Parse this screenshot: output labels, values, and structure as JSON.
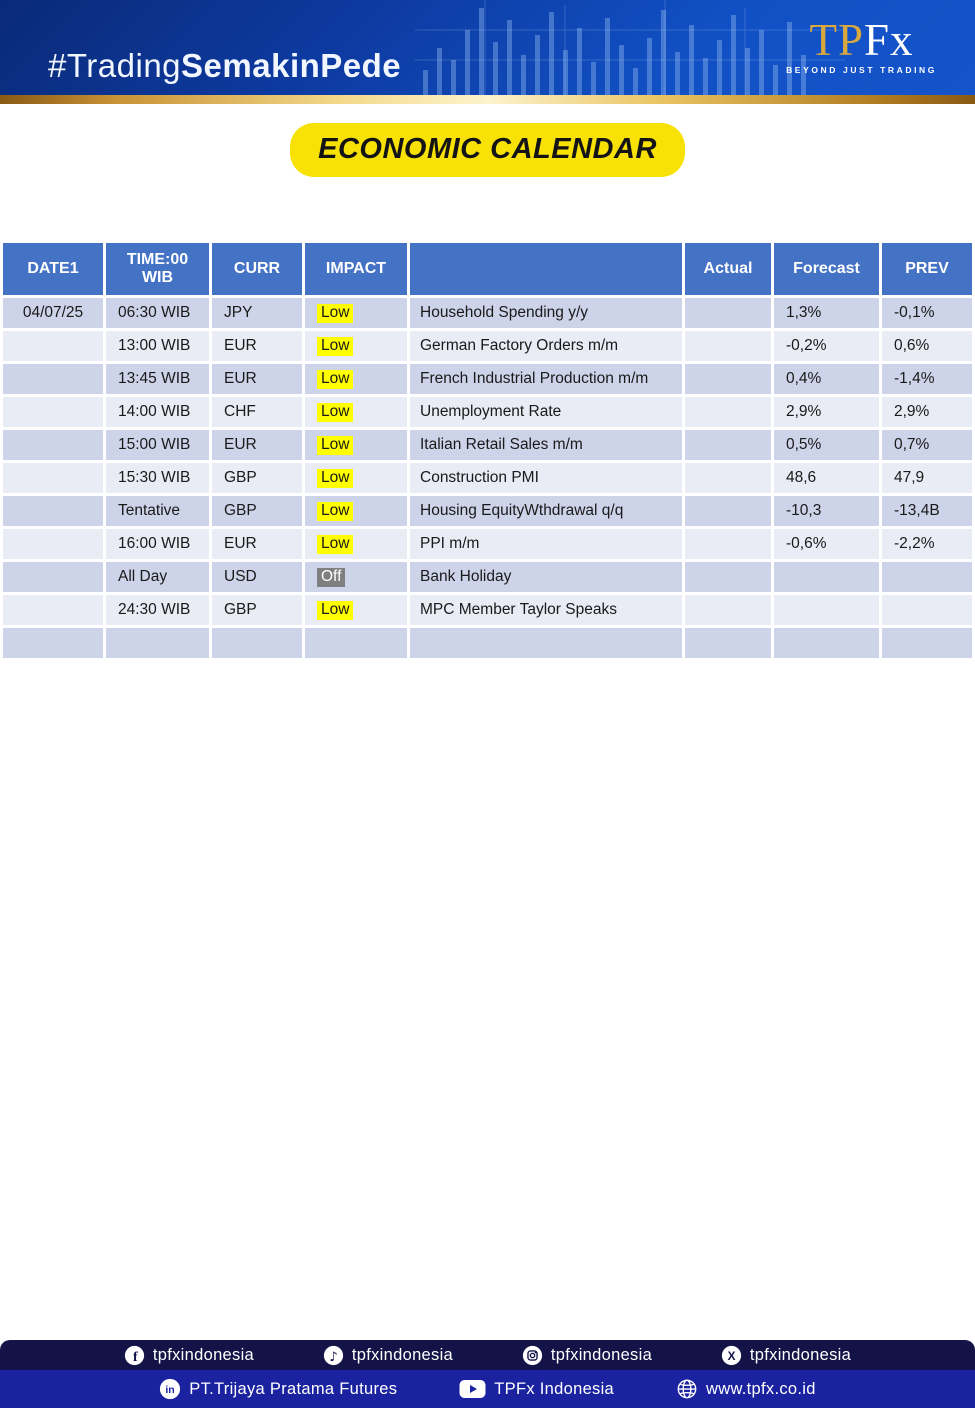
{
  "header": {
    "hashtag": {
      "regular": "#Trading",
      "bold": "SemakinPede"
    },
    "logo": {
      "tp": "TP",
      "fx": "Fx",
      "tagline": "BEYOND JUST TRADING"
    }
  },
  "title_badge": "ECONOMIC CALENDAR",
  "table": {
    "headers": {
      "date": "DATE1",
      "time": "TIME:00 WIB",
      "curr": "CURR",
      "impact": "IMPACT",
      "event": "",
      "actual": "Actual",
      "forecast": "Forecast",
      "prev": "PREV"
    },
    "rows": [
      {
        "date": "04/07/25",
        "time": "06:30 WIB",
        "curr": "JPY",
        "impact": "Low",
        "event": "Household Spending y/y",
        "actual": "",
        "forecast": "1,3%",
        "prev": "-0,1%"
      },
      {
        "date": "",
        "time": "13:00 WIB",
        "curr": "EUR",
        "impact": "Low",
        "event": "German Factory Orders m/m",
        "actual": "",
        "forecast": "-0,2%",
        "prev": "0,6%"
      },
      {
        "date": "",
        "time": "13:45 WIB",
        "curr": "EUR",
        "impact": "Low",
        "event": "French Industrial Production m/m",
        "actual": "",
        "forecast": "0,4%",
        "prev": "-1,4%"
      },
      {
        "date": "",
        "time": "14:00 WIB",
        "curr": "CHF",
        "impact": "Low",
        "event": "Unemployment Rate",
        "actual": "",
        "forecast": "2,9%",
        "prev": "2,9%"
      },
      {
        "date": "",
        "time": "15:00 WIB",
        "curr": "EUR",
        "impact": "Low",
        "event": "Italian Retail Sales m/m",
        "actual": "",
        "forecast": "0,5%",
        "prev": "0,7%"
      },
      {
        "date": "",
        "time": "15:30 WIB",
        "curr": "GBP",
        "impact": "Low",
        "event": "Construction PMI",
        "actual": "",
        "forecast": "48,6",
        "prev": "47,9"
      },
      {
        "date": "",
        "time": "Tentative",
        "curr": "GBP",
        "impact": "Low",
        "event": "Housing EquityWthdrawal q/q",
        "actual": "",
        "forecast": "-10,3",
        "prev": "-13,4B"
      },
      {
        "date": "",
        "time": "16:00 WIB",
        "curr": "EUR",
        "impact": "Low",
        "event": "PPI m/m",
        "actual": "",
        "forecast": "-0,6%",
        "prev": "-2,2%"
      },
      {
        "date": "",
        "time": "All Day",
        "curr": "USD",
        "impact": "Off",
        "event": "Bank Holiday",
        "actual": "",
        "forecast": "",
        "prev": ""
      },
      {
        "date": "",
        "time": "24:30 WIB",
        "curr": "GBP",
        "impact": "Low",
        "event": "MPC Member Taylor Speaks",
        "actual": "",
        "forecast": "",
        "prev": ""
      },
      {
        "date": "",
        "time": "",
        "curr": "",
        "impact": "",
        "event": "",
        "actual": "",
        "forecast": "",
        "prev": ""
      }
    ]
  },
  "footer": {
    "social_row": [
      {
        "icon": "facebook-icon",
        "label": "tpfxindonesia"
      },
      {
        "icon": "tiktok-icon",
        "label": "tpfxindonesia"
      },
      {
        "icon": "instagram-icon",
        "label": "tpfxindonesia"
      },
      {
        "icon": "x-icon",
        "label": "tpfxindonesia"
      }
    ],
    "company_row": [
      {
        "icon": "linkedin-icon",
        "label": "PT.Trijaya Pratama Futures"
      },
      {
        "icon": "youtube-icon",
        "label": "TPFx Indonesia"
      },
      {
        "icon": "globe-icon",
        "label": "www.tpfx.co.id"
      }
    ]
  },
  "colors": {
    "table_header_bg": "#4472C4",
    "row_odd_bg": "#CDD3E9",
    "row_even_bg": "#E9EBF5",
    "impact_low_bg": "#FFFF00",
    "impact_off_bg": "#7F7F7F",
    "badge_yellow": "#F8E205",
    "banner_blue": "#1150C4",
    "gold": "#D9A940",
    "footer_top_bg": "#131347",
    "footer_bottom_bg": "#1A22A0"
  }
}
